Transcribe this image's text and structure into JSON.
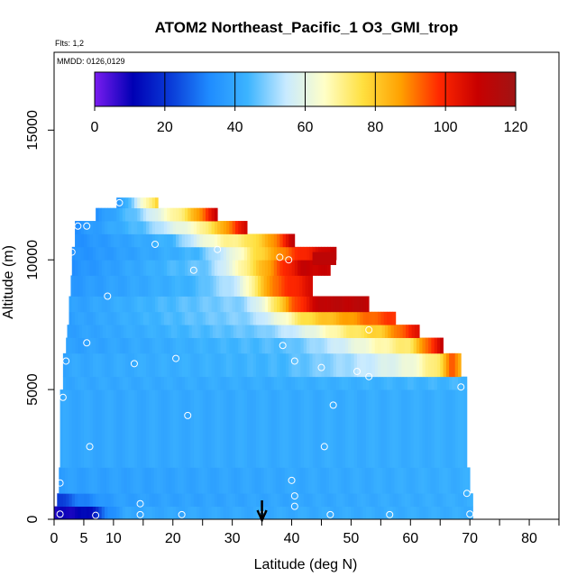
{
  "chart_data": {
    "type": "heatmap",
    "title": "ATOM2 Northeast_Pacific_1 O3_GMI_trop",
    "flights_label": "Flts: 1,2",
    "dates_label": "MMDD: 0126,0129",
    "xlabel": "Latitude (deg N)",
    "ylabel": "Altitude (m)",
    "xlim": [
      0,
      85
    ],
    "ylim": [
      0,
      18000
    ],
    "x_ticks": [
      0,
      5,
      10,
      20,
      30,
      40,
      50,
      60,
      70,
      80
    ],
    "x_tick_labels": [
      "0",
      "5",
      "10",
      "20",
      "30",
      "40",
      "50",
      "60",
      "70",
      "80"
    ],
    "y_ticks": [
      0,
      5000,
      10000,
      15000
    ],
    "y_tick_labels": [
      "0",
      "5000",
      "10000",
      "15000"
    ],
    "colorbar": {
      "min": 0,
      "max": 120,
      "ticks": [
        0,
        20,
        40,
        60,
        80,
        100,
        120
      ],
      "tick_labels": [
        "0",
        "20",
        "40",
        "60",
        "80",
        "100",
        "120"
      ],
      "colors": [
        "#7a1cf0",
        "#0000b4",
        "#0a3cd8",
        "#1f8cff",
        "#3cb4ff",
        "#c8eaff",
        "#ffffc8",
        "#ffe040",
        "#ffa000",
        "#ff2800",
        "#c80000",
        "#a01414"
      ]
    },
    "arrow_latitude": 35,
    "layers": [
      {
        "y0": 0,
        "y1": 500,
        "x0": 0,
        "x1": 70.5,
        "stops": [
          [
            0,
            8
          ],
          [
            6,
            12
          ],
          [
            9,
            32
          ],
          [
            12,
            40
          ],
          [
            70.5,
            42
          ]
        ]
      },
      {
        "y0": 500,
        "y1": 1000,
        "x0": 0.5,
        "x1": 70.5,
        "stops": [
          [
            0.5,
            20
          ],
          [
            4,
            30
          ],
          [
            10,
            38
          ],
          [
            70.5,
            42
          ]
        ]
      },
      {
        "y0": 1000,
        "y1": 2000,
        "x0": 0.8,
        "x1": 70,
        "stops": [
          [
            0.8,
            38
          ],
          [
            70,
            42
          ]
        ]
      },
      {
        "y0": 2000,
        "y1": 5000,
        "x0": 1,
        "x1": 69.5,
        "stops": [
          [
            1,
            40
          ],
          [
            69.5,
            42
          ]
        ]
      },
      {
        "y0": 5000,
        "y1": 5500,
        "x0": 1.5,
        "x1": 69.5,
        "stops": [
          [
            1.5,
            40
          ],
          [
            40,
            42
          ],
          [
            69.5,
            44
          ]
        ]
      },
      {
        "y0": 5500,
        "y1": 6400,
        "x0": 1.5,
        "x1": 68.5,
        "stops": [
          [
            1.5,
            40
          ],
          [
            38,
            44
          ],
          [
            50,
            52
          ],
          [
            60,
            62
          ],
          [
            65,
            75
          ],
          [
            67,
            95
          ],
          [
            68.5,
            85
          ]
        ]
      },
      {
        "y0": 6400,
        "y1": 7000,
        "x0": 2,
        "x1": 65.5,
        "stops": [
          [
            2,
            38
          ],
          [
            40,
            46
          ],
          [
            48,
            56
          ],
          [
            54,
            66
          ],
          [
            60,
            74
          ],
          [
            63,
            94
          ],
          [
            65.5,
            110
          ]
        ]
      },
      {
        "y0": 7000,
        "y1": 7500,
        "x0": 2.2,
        "x1": 61.5,
        "stops": [
          [
            2.2,
            38
          ],
          [
            35,
            48
          ],
          [
            42,
            58
          ],
          [
            48,
            70
          ],
          [
            55,
            80
          ],
          [
            61.5,
            105
          ]
        ]
      },
      {
        "y0": 7500,
        "y1": 8000,
        "x0": 2.5,
        "x1": 57.5,
        "stops": [
          [
            2.5,
            38
          ],
          [
            33,
            50
          ],
          [
            38,
            62
          ],
          [
            42,
            76
          ],
          [
            50,
            88
          ],
          [
            57.5,
            98
          ]
        ]
      },
      {
        "y0": 8000,
        "y1": 8600,
        "x0": 2.5,
        "x1": 53,
        "stops": [
          [
            2.5,
            38
          ],
          [
            32,
            50
          ],
          [
            36,
            66
          ],
          [
            40,
            92
          ],
          [
            45,
            112
          ],
          [
            53,
            112
          ]
        ]
      },
      {
        "y0": 8600,
        "y1": 9400,
        "x0": 2.8,
        "x1": 43.5,
        "stops": [
          [
            2.8,
            36
          ],
          [
            24,
            44
          ],
          [
            31,
            56
          ],
          [
            34,
            74
          ],
          [
            37,
            92
          ],
          [
            43.5,
            106
          ]
        ]
      },
      {
        "y0": 9400,
        "y1": 10000,
        "x0": 3,
        "x1": 46.5,
        "stops": [
          [
            3,
            34
          ],
          [
            26,
            48
          ],
          [
            30,
            62
          ],
          [
            34,
            78
          ],
          [
            38,
            95
          ],
          [
            42,
            110
          ],
          [
            46.5,
            108
          ]
        ]
      },
      {
        "y0": 10000,
        "y1": 10500,
        "x0": 3,
        "x1": 47.5,
        "stops": [
          [
            3,
            34
          ],
          [
            24,
            44
          ],
          [
            30,
            60
          ],
          [
            34,
            76
          ],
          [
            40,
            95
          ],
          [
            47.5,
            112
          ]
        ]
      },
      {
        "y0": 10500,
        "y1": 11000,
        "x0": 3.5,
        "x1": 40.5,
        "stops": [
          [
            3.5,
            34
          ],
          [
            20,
            44
          ],
          [
            24,
            58
          ],
          [
            28,
            68
          ],
          [
            33,
            74
          ],
          [
            37,
            88
          ],
          [
            40.5,
            112
          ]
        ]
      },
      {
        "y0": 11000,
        "y1": 11500,
        "x0": 3.5,
        "x1": 32.5,
        "stops": [
          [
            3.5,
            34
          ],
          [
            15,
            46
          ],
          [
            19,
            56
          ],
          [
            24,
            66
          ],
          [
            28,
            82
          ],
          [
            32.5,
            108
          ]
        ]
      },
      {
        "y0": 11500,
        "y1": 12000,
        "x0": 7,
        "x1": 27.5,
        "stops": [
          [
            7,
            34
          ],
          [
            14,
            48
          ],
          [
            18,
            62
          ],
          [
            22,
            74
          ],
          [
            25,
            92
          ],
          [
            27.5,
            110
          ]
        ]
      },
      {
        "y0": 12000,
        "y1": 12400,
        "x0": 10.5,
        "x1": 17.5,
        "stops": [
          [
            10.5,
            34
          ],
          [
            13,
            48
          ],
          [
            15,
            64
          ],
          [
            17.5,
            80
          ]
        ]
      }
    ],
    "patches": [
      {
        "y0": 9800,
        "y1": 10300,
        "x0": 43.5,
        "x1": 47.5,
        "value": 112
      }
    ],
    "points": [
      {
        "lat": 1,
        "alt": 200
      },
      {
        "lat": 7,
        "alt": 150
      },
      {
        "lat": 14.5,
        "alt": 180
      },
      {
        "lat": 21.5,
        "alt": 180
      },
      {
        "lat": 35,
        "alt": 180
      },
      {
        "lat": 40.5,
        "alt": 500
      },
      {
        "lat": 46.5,
        "alt": 180
      },
      {
        "lat": 56.5,
        "alt": 180
      },
      {
        "lat": 70,
        "alt": 200
      },
      {
        "lat": 14.5,
        "alt": 600
      },
      {
        "lat": 69.5,
        "alt": 1000
      },
      {
        "lat": 40.5,
        "alt": 900
      },
      {
        "lat": 1,
        "alt": 1400
      },
      {
        "lat": 40,
        "alt": 1500
      },
      {
        "lat": 6,
        "alt": 2800
      },
      {
        "lat": 45.5,
        "alt": 2800
      },
      {
        "lat": 22.5,
        "alt": 4000
      },
      {
        "lat": 47,
        "alt": 4400
      },
      {
        "lat": 1.5,
        "alt": 4700
      },
      {
        "lat": 68.5,
        "alt": 5100
      },
      {
        "lat": 53,
        "alt": 5500
      },
      {
        "lat": 51,
        "alt": 5700
      },
      {
        "lat": 45,
        "alt": 5850
      },
      {
        "lat": 13.5,
        "alt": 6000
      },
      {
        "lat": 2,
        "alt": 6100
      },
      {
        "lat": 40.5,
        "alt": 6100
      },
      {
        "lat": 20.5,
        "alt": 6200
      },
      {
        "lat": 38.5,
        "alt": 6700
      },
      {
        "lat": 5.5,
        "alt": 6800
      },
      {
        "lat": 53,
        "alt": 7300
      },
      {
        "lat": 9,
        "alt": 8600
      },
      {
        "lat": 23.5,
        "alt": 9600
      },
      {
        "lat": 38,
        "alt": 10100
      },
      {
        "lat": 39.5,
        "alt": 10000
      },
      {
        "lat": 3,
        "alt": 10300
      },
      {
        "lat": 27.5,
        "alt": 10400
      },
      {
        "lat": 17,
        "alt": 10600
      },
      {
        "lat": 4,
        "alt": 11300
      },
      {
        "lat": 5.5,
        "alt": 11300
      },
      {
        "lat": 11,
        "alt": 12200
      }
    ]
  }
}
